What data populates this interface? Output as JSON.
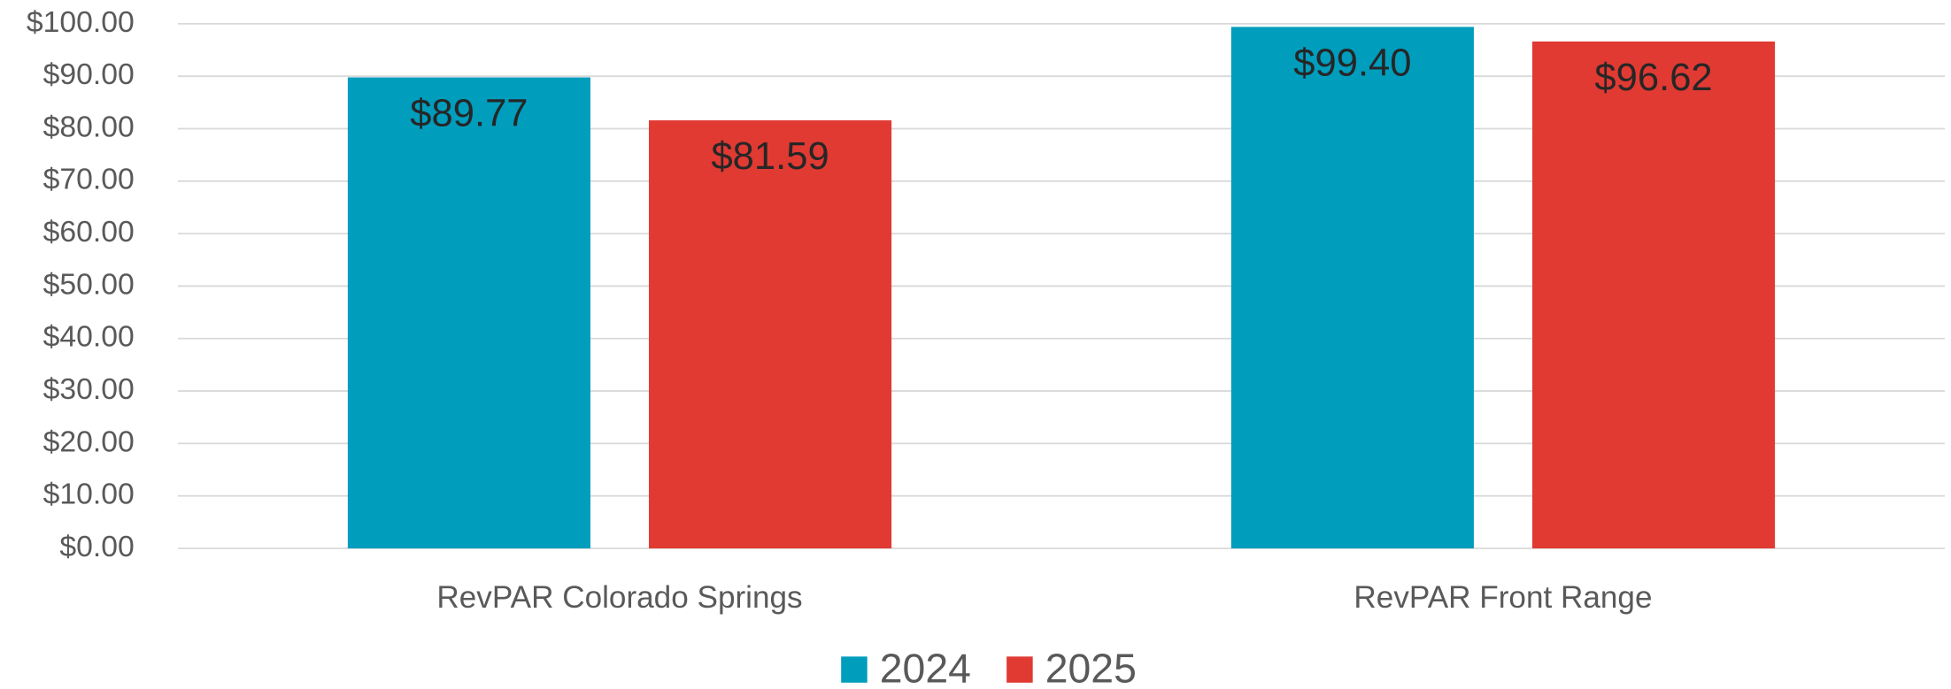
{
  "chart_data": {
    "type": "bar",
    "categories": [
      "RevPAR Colorado Springs",
      "RevPAR Front Range"
    ],
    "series": [
      {
        "name": "2024",
        "color": "#009dbd",
        "values": [
          89.77,
          99.4
        ],
        "value_labels": [
          "$89.77",
          "$99.40"
        ]
      },
      {
        "name": "2025",
        "color": "#e03a33",
        "values": [
          81.59,
          96.62
        ],
        "value_labels": [
          "$81.59",
          "$96.62"
        ]
      }
    ],
    "ylim": [
      0,
      100
    ],
    "yticks": [
      {
        "value": 0,
        "label": "$0.00"
      },
      {
        "value": 10,
        "label": "$10.00"
      },
      {
        "value": 20,
        "label": "$20.00"
      },
      {
        "value": 30,
        "label": "$30.00"
      },
      {
        "value": 40,
        "label": "$40.00"
      },
      {
        "value": 50,
        "label": "$50.00"
      },
      {
        "value": 60,
        "label": "$60.00"
      },
      {
        "value": 70,
        "label": "$70.00"
      },
      {
        "value": 80,
        "label": "$80.00"
      },
      {
        "value": 90,
        "label": "$90.00"
      },
      {
        "value": 100,
        "label": "$100.00"
      }
    ],
    "grid": true,
    "legend": "bottom"
  }
}
